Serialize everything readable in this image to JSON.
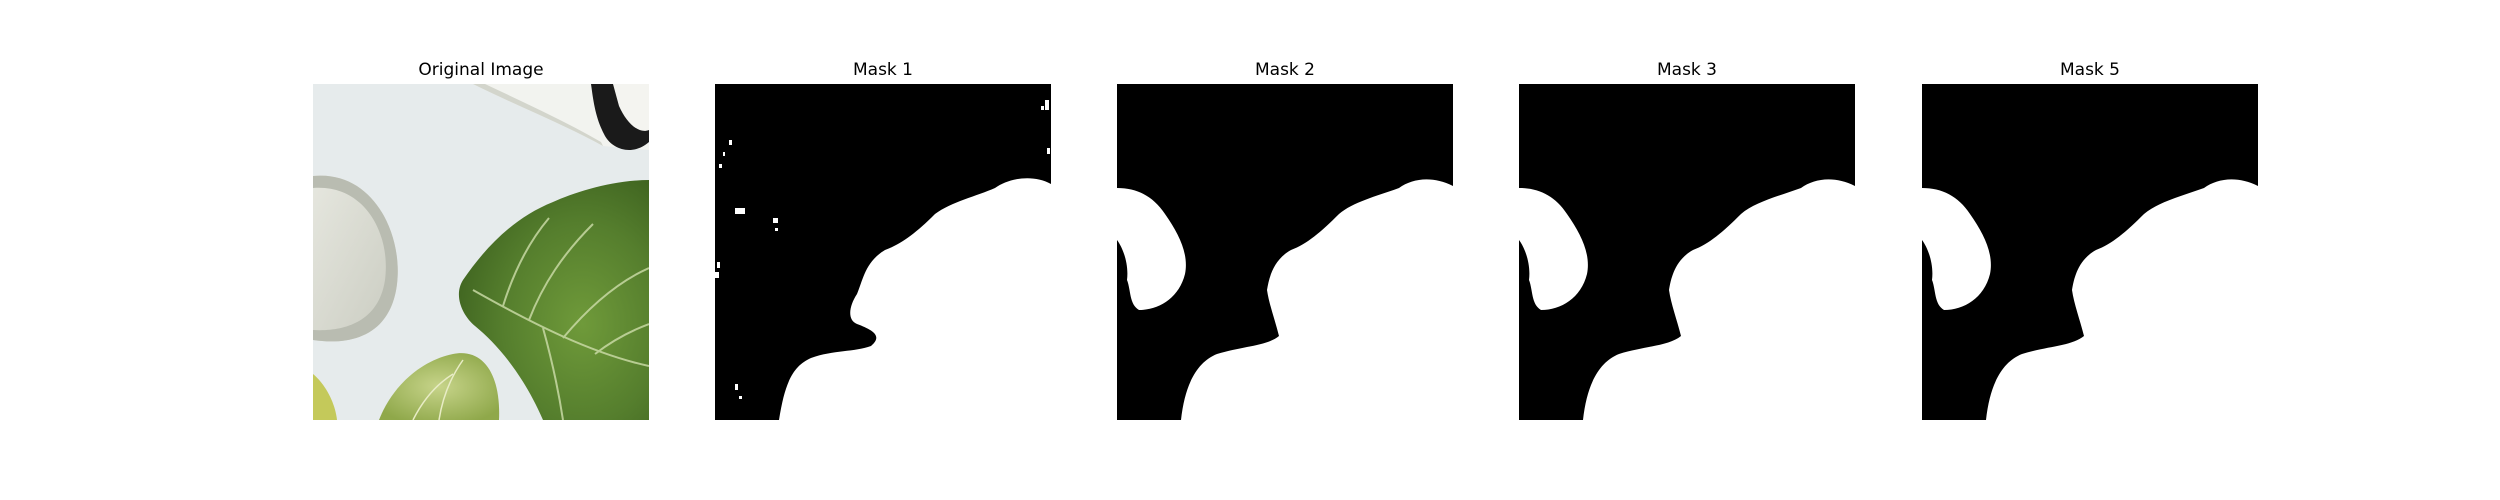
{
  "panels": [
    {
      "title": "Original Image",
      "kind": "photo"
    },
    {
      "title": "Mask 1",
      "kind": "mask"
    },
    {
      "title": "Mask 2",
      "kind": "mask"
    },
    {
      "title": "Mask 3",
      "kind": "mask"
    },
    {
      "title": "Mask 5",
      "kind": "mask"
    }
  ],
  "colors": {
    "mask_background": "#000000",
    "mask_foreground": "#ffffff",
    "photo_surface": "#e8edee",
    "leaf_dark": "#4a6f28",
    "leaf_light": "#8fae55"
  }
}
